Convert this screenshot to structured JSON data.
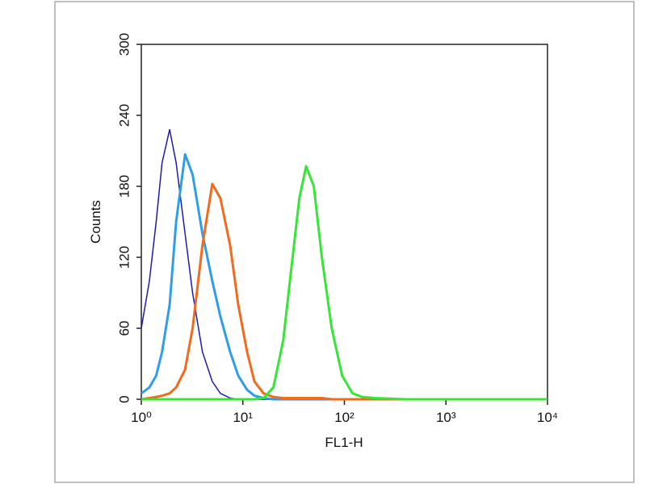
{
  "chart_data": {
    "type": "line",
    "xlabel": "FL1-H",
    "ylabel": "Counts",
    "x_scale": "log",
    "xlim": [
      1,
      10000
    ],
    "xticks": [
      {
        "value": 1,
        "label": "10⁰"
      },
      {
        "value": 10,
        "label": "10¹"
      },
      {
        "value": 100,
        "label": "10²"
      },
      {
        "value": 1000,
        "label": "10³"
      },
      {
        "value": 10000,
        "label": "10⁴"
      }
    ],
    "ylim": [
      0,
      300
    ],
    "yticks": [
      0,
      60,
      120,
      180,
      240,
      300
    ],
    "x": [
      1,
      1.2,
      1.4,
      1.6,
      1.9,
      2.2,
      2.7,
      3.2,
      4,
      5,
      6,
      7.5,
      9,
      11,
      13,
      16,
      20,
      25,
      30,
      36,
      42,
      50,
      60,
      75,
      95,
      120,
      150,
      200,
      400,
      1000,
      10000
    ],
    "series": [
      {
        "color": "#1c1ca8",
        "values": [
          60,
          100,
          150,
          200,
          228,
          200,
          140,
          90,
          40,
          15,
          5,
          1,
          0,
          0,
          0,
          0,
          0,
          0,
          0,
          0,
          0,
          0,
          0,
          0,
          0,
          0,
          0,
          0,
          0,
          0,
          0
        ]
      },
      {
        "color": "#2f9de8",
        "values": [
          5,
          10,
          20,
          40,
          80,
          150,
          207,
          190,
          140,
          100,
          70,
          40,
          20,
          8,
          3,
          1,
          0,
          0,
          0,
          0,
          0,
          0,
          0,
          0,
          0,
          0,
          0,
          0,
          0,
          0,
          0
        ]
      },
      {
        "color": "#f26b1d",
        "values": [
          0,
          1,
          2,
          3,
          5,
          10,
          25,
          60,
          130,
          182,
          170,
          130,
          80,
          40,
          15,
          5,
          2,
          1,
          1,
          1,
          1,
          1,
          1,
          0,
          0,
          0,
          0,
          0,
          0,
          0,
          0
        ]
      },
      {
        "color": "#36e636",
        "values": [
          0,
          0,
          0,
          0,
          0,
          0,
          0,
          0,
          0,
          0,
          0,
          0,
          0,
          0,
          0,
          1,
          10,
          50,
          110,
          170,
          197,
          180,
          120,
          60,
          20,
          5,
          2,
          1,
          0,
          0,
          0
        ]
      }
    ]
  }
}
